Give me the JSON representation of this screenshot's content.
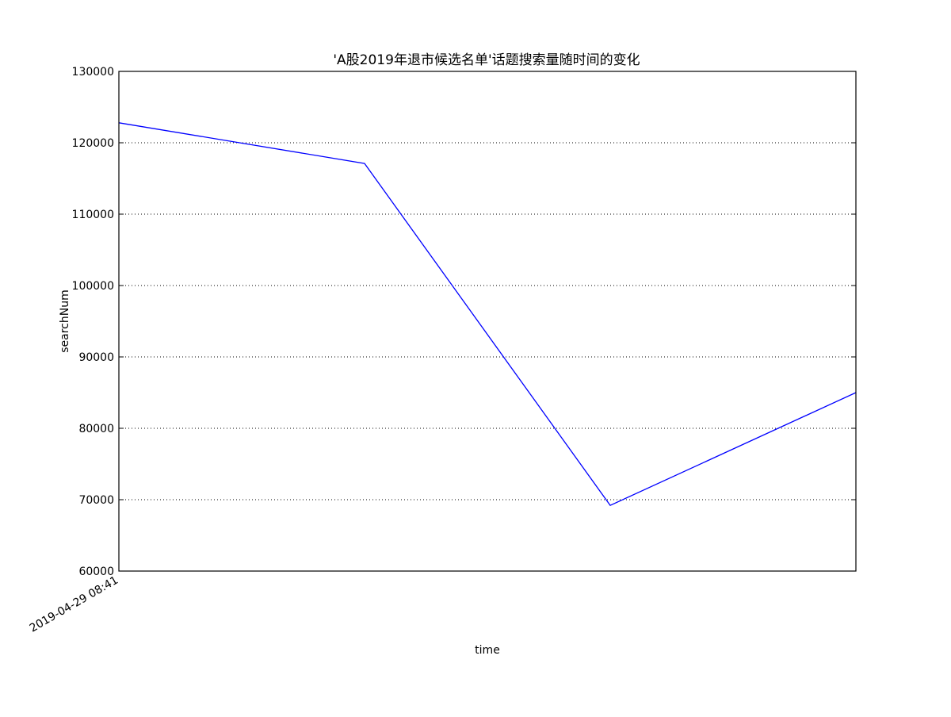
{
  "chart_data": {
    "type": "line",
    "title": "'A股2019年退市候选名单'话题搜索量随时间的变化",
    "xlabel": "time",
    "ylabel": "searchNum",
    "x_tick_labels": [
      "2019-04-29 08:41"
    ],
    "y_ticks": [
      60000,
      70000,
      80000,
      90000,
      100000,
      110000,
      120000,
      130000
    ],
    "ylim": [
      60000,
      130000
    ],
    "grid": "horizontal-dotted",
    "colors": {
      "line": "#0000ff",
      "axes": "#000000",
      "grid": "#000000"
    },
    "series": [
      {
        "values": [
          122800,
          117100,
          69200,
          85000
        ]
      }
    ]
  }
}
